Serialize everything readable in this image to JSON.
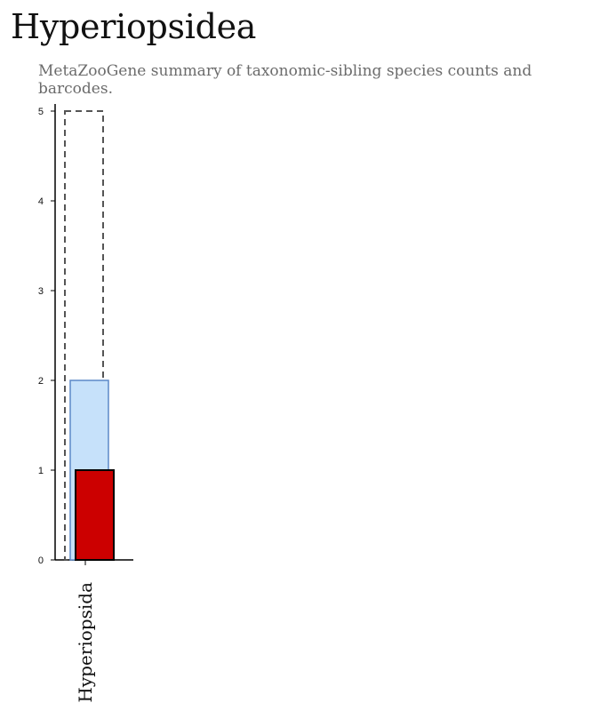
{
  "header": {
    "title": "Hyperiopsidea",
    "subtitle": "MetaZooGene summary of taxonomic-sibling species counts and barcodes."
  },
  "chart_data": {
    "type": "bar",
    "categories": [
      "Hyperiopsida"
    ],
    "ylim": [
      0,
      5
    ],
    "yticks": [
      0,
      1,
      2,
      3,
      4,
      5
    ],
    "grid": false,
    "series": [
      {
        "values": [
          5
        ],
        "color": "#555555",
        "style": "dashed-outline"
      },
      {
        "values": [
          2
        ],
        "color": "#c6e1fa",
        "stroke": "#5b89c8"
      },
      {
        "values": [
          1
        ],
        "color": "#cc0000",
        "stroke": "#000000"
      }
    ]
  }
}
